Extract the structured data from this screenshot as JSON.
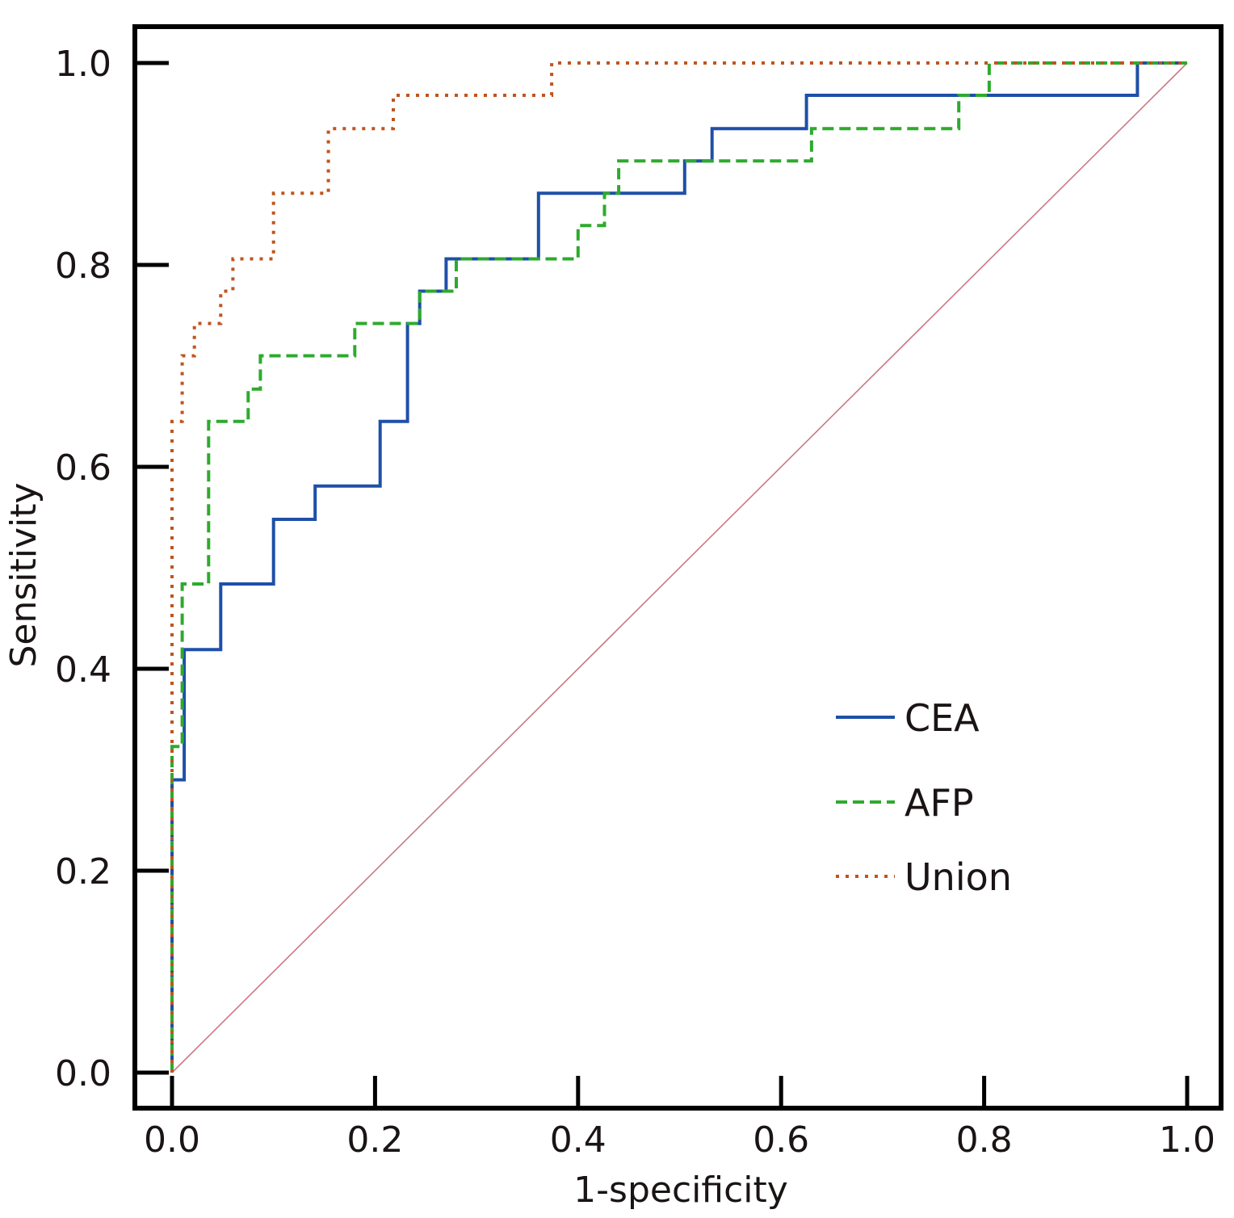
{
  "chart_data": {
    "type": "line",
    "title": "",
    "xlabel": "1-specificity",
    "ylabel": "Sensitivity",
    "xlim": [
      0,
      1
    ],
    "ylim": [
      0,
      1
    ],
    "x_ticks": [
      "0.0",
      "0.2",
      "0.4",
      "0.6",
      "0.8",
      "1.0"
    ],
    "y_ticks": [
      "0.0",
      "0.2",
      "0.4",
      "0.6",
      "0.8",
      "1.0"
    ],
    "x_tick_values": [
      0,
      0.2,
      0.4,
      0.6,
      0.8,
      1.0
    ],
    "y_tick_values": [
      0,
      0.2,
      0.4,
      0.6,
      0.8,
      1.0
    ],
    "grid": false,
    "legend_position": "center-right",
    "series": [
      {
        "name": "CEA",
        "style": "solid",
        "color": "#1f4fa8",
        "x": [
          0,
          0,
          0.012,
          0.012,
          0.048,
          0.048,
          0.1,
          0.1,
          0.141,
          0.141,
          0.205,
          0.205,
          0.232,
          0.232,
          0.244,
          0.244,
          0.27,
          0.27,
          0.361,
          0.361,
          0.505,
          0.505,
          0.532,
          0.532,
          0.625,
          0.625,
          0.951,
          0.951,
          1.0
        ],
        "y": [
          0,
          0.29,
          0.29,
          0.419,
          0.419,
          0.484,
          0.484,
          0.548,
          0.548,
          0.581,
          0.581,
          0.645,
          0.645,
          0.742,
          0.742,
          0.774,
          0.774,
          0.806,
          0.806,
          0.871,
          0.871,
          0.903,
          0.903,
          0.935,
          0.935,
          0.968,
          0.968,
          1.0,
          1.0
        ]
      },
      {
        "name": "AFP",
        "style": "dashed",
        "color": "#2eaa2e",
        "x": [
          0,
          0,
          0.01,
          0.01,
          0.036,
          0.036,
          0.075,
          0.075,
          0.087,
          0.087,
          0.18,
          0.18,
          0.244,
          0.244,
          0.28,
          0.28,
          0.4,
          0.4,
          0.426,
          0.426,
          0.44,
          0.44,
          0.63,
          0.63,
          0.775,
          0.775,
          0.805,
          0.805,
          1.0
        ],
        "y": [
          0,
          0.323,
          0.323,
          0.484,
          0.484,
          0.645,
          0.645,
          0.677,
          0.677,
          0.71,
          0.71,
          0.742,
          0.742,
          0.774,
          0.774,
          0.806,
          0.806,
          0.839,
          0.839,
          0.871,
          0.871,
          0.903,
          0.903,
          0.935,
          0.935,
          0.968,
          0.968,
          1.0,
          1.0
        ]
      },
      {
        "name": "Union",
        "style": "dotted",
        "color": "#c0541e",
        "x": [
          0,
          0,
          0.01,
          0.01,
          0.022,
          0.022,
          0.048,
          0.048,
          0.06,
          0.06,
          0.087,
          0.087,
          0.1,
          0.1,
          0.154,
          0.154,
          0.218,
          0.218,
          0.374,
          0.374,
          1.0
        ],
        "y": [
          0,
          0.645,
          0.645,
          0.71,
          0.71,
          0.742,
          0.742,
          0.774,
          0.774,
          0.806,
          0.806,
          0.806,
          0.806,
          0.871,
          0.871,
          0.935,
          0.935,
          0.968,
          0.968,
          1.0,
          1.0
        ]
      },
      {
        "name": "Reference",
        "style": "solid",
        "color": "#c97a82",
        "x": [
          0,
          1
        ],
        "y": [
          0,
          1
        ]
      }
    ],
    "legend": [
      {
        "label": "CEA",
        "style": "solid",
        "color": "#1f4fa8"
      },
      {
        "label": "AFP",
        "style": "dashed",
        "color": "#2eaa2e"
      },
      {
        "label": "Union",
        "style": "dotted",
        "color": "#c0541e"
      }
    ]
  }
}
